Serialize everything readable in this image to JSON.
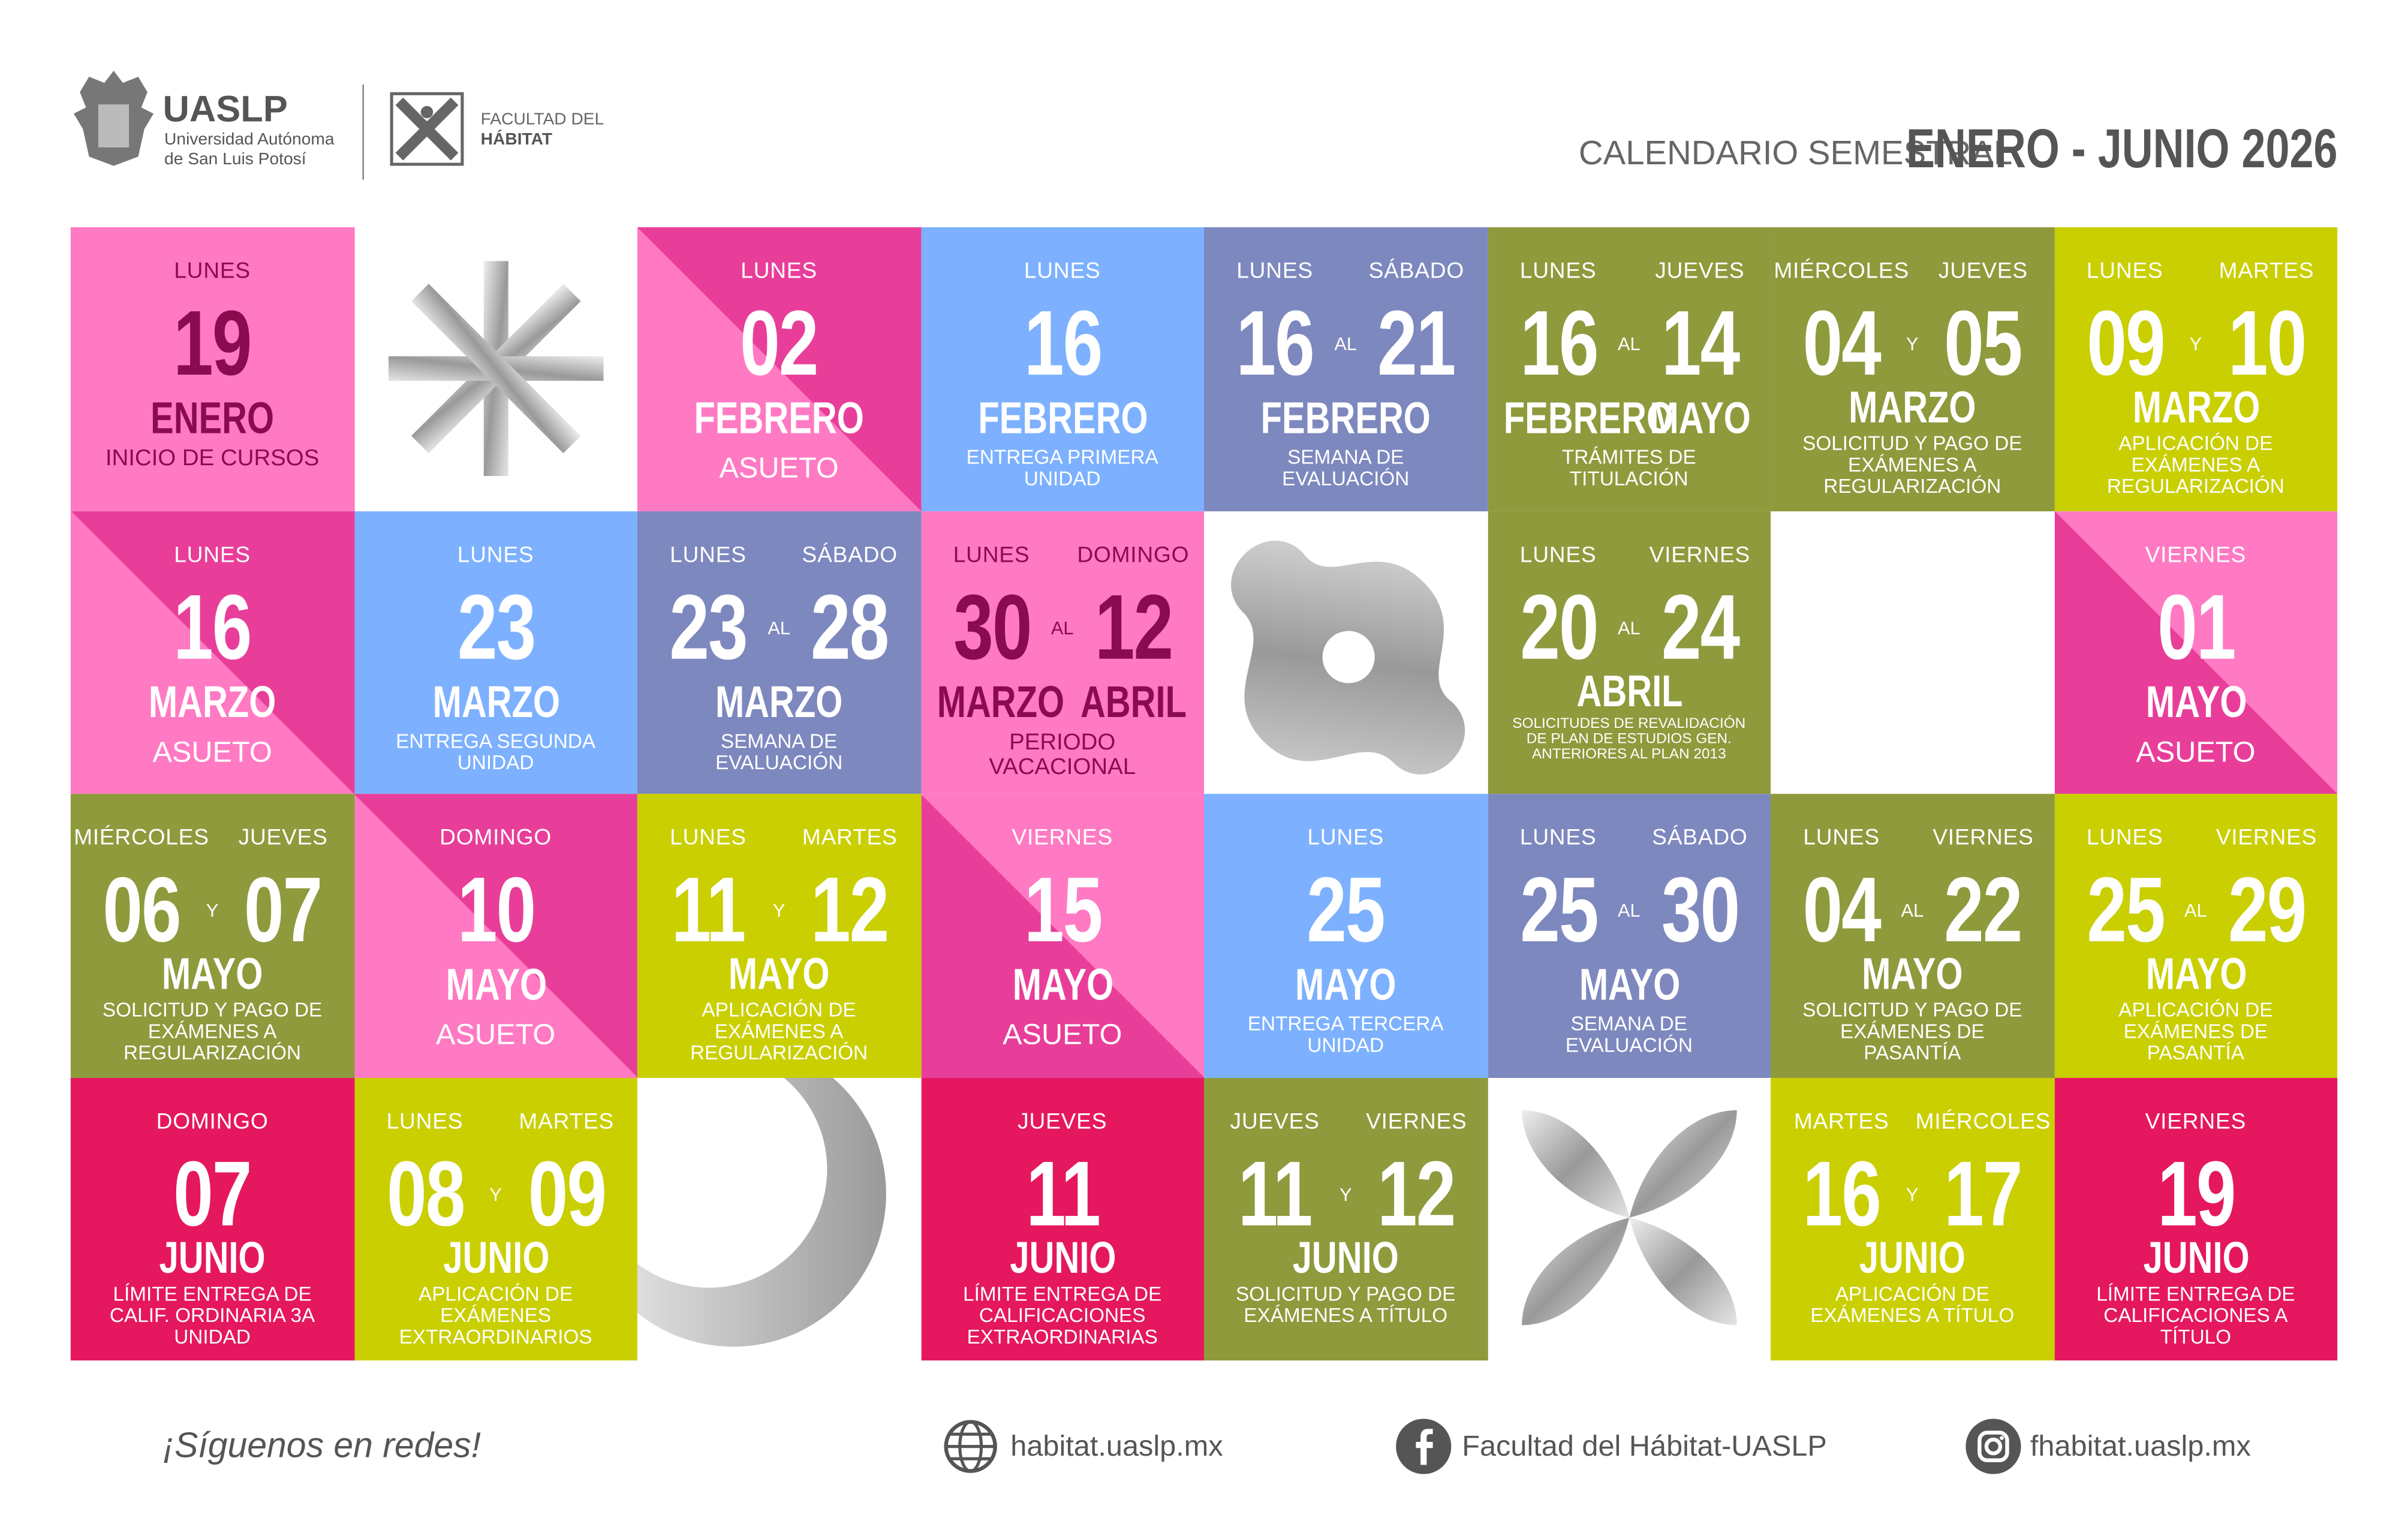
{
  "header": {
    "brand": "UASLP",
    "university": [
      "Universidad Autónoma",
      "de San Luis Potosí"
    ],
    "faculty": [
      "FACULTAD DEL",
      "HÁBITAT"
    ],
    "calendar_label": "CALENDARIO SEMESTRAL",
    "period": "ENERO - JUNIO 2026"
  },
  "cells": [
    {
      "weekdays": [
        "LUNES"
      ],
      "days": [
        "19"
      ],
      "months": [
        "ENERO"
      ],
      "description": "INICIO DE CURSOS",
      "colors": [
        "#ff7ac3",
        "#ff7ac3"
      ],
      "text_color": "#8a0b4f"
    },
    {
      "weekdays": [
        "LUNES"
      ],
      "days": [
        "02"
      ],
      "months": [
        "FEBRERO"
      ],
      "description": "ASUETO",
      "colors": [
        "#e83e9a",
        "#ff7ac3"
      ],
      "text_color": "#ffffff"
    },
    {
      "weekdays": [
        "LUNES"
      ],
      "days": [
        "16"
      ],
      "months": [
        "FEBRERO"
      ],
      "description": "ENTREGA PRIMERA UNIDAD",
      "colors": [
        "#7db1ff",
        "#7db1ff"
      ],
      "text_color": "#ffffff"
    },
    {
      "weekdays": [
        "LUNES",
        "SÁBADO"
      ],
      "days": [
        "16",
        "21"
      ],
      "connector": "AL",
      "months": [
        "FEBRERO"
      ],
      "description": "SEMANA DE EVALUACIÓN",
      "colors": [
        "#7d88be",
        "#7d88be"
      ],
      "text_color": "#ffffff"
    },
    {
      "weekdays": [
        "LUNES",
        "JUEVES"
      ],
      "days": [
        "16",
        "14"
      ],
      "connector": "AL",
      "months": [
        "FEBRERO",
        "MAYO"
      ],
      "description": "TRÁMITES DE TITULACIÓN",
      "colors": [
        "#8e9a3c",
        "#8e9a3c"
      ],
      "text_color": "#ffffff"
    },
    {
      "weekdays": [
        "MIÉRCOLES",
        "JUEVES"
      ],
      "days": [
        "04",
        "05"
      ],
      "connector": "Y",
      "months": [
        "MARZO"
      ],
      "description": "SOLICITUD Y PAGO DE EXÁMENES A REGULARIZACIÓN",
      "colors": [
        "#8e9a3c",
        "#8e9a3c"
      ],
      "text_color": "#ffffff"
    },
    {
      "weekdays": [
        "LUNES",
        "MARTES"
      ],
      "days": [
        "09",
        "10"
      ],
      "connector": "Y",
      "months": [
        "MARZO"
      ],
      "description": "APLICACIÓN DE EXÁMENES A REGULARIZACIÓN",
      "colors": [
        "#c9cf00",
        "#c9cf00"
      ],
      "text_color": "#ffffff"
    },
    {
      "weekdays": [
        "LUNES"
      ],
      "days": [
        "16"
      ],
      "months": [
        "MARZO"
      ],
      "description": "ASUETO",
      "colors": [
        "#e83e9a",
        "#ff7ac3"
      ],
      "text_color": "#ffffff"
    },
    {
      "weekdays": [
        "LUNES"
      ],
      "days": [
        "23"
      ],
      "months": [
        "MARZO"
      ],
      "description": "ENTREGA SEGUNDA UNIDAD",
      "colors": [
        "#7db1ff",
        "#7db1ff"
      ],
      "text_color": "#ffffff"
    },
    {
      "weekdays": [
        "LUNES",
        "SÁBADO"
      ],
      "days": [
        "23",
        "28"
      ],
      "connector": "AL",
      "months": [
        "MARZO"
      ],
      "description": "SEMANA DE EVALUACIÓN",
      "colors": [
        "#7d88be",
        "#7d88be"
      ],
      "text_color": "#ffffff"
    },
    {
      "weekdays": [
        "LUNES",
        "DOMINGO"
      ],
      "days": [
        "30",
        "12"
      ],
      "connector": "AL",
      "months": [
        "MARZO",
        "ABRIL"
      ],
      "description": "PERIODO VACACIONAL",
      "colors": [
        "#ff7ac3",
        "#ff7ac3"
      ],
      "text_color": "#8a0b4f"
    },
    {
      "weekdays": [
        "LUNES",
        "VIERNES"
      ],
      "days": [
        "20",
        "24"
      ],
      "connector": "AL",
      "months": [
        "ABRIL"
      ],
      "description": "SOLICITUDES DE REVALIDACIÓN DE PLAN DE ESTUDIOS GEN. ANTERIORES AL PLAN 2013",
      "colors": [
        "#8e9a3c",
        "#8e9a3c"
      ],
      "text_color": "#ffffff"
    },
    {
      "weekdays": [
        "VIERNES"
      ],
      "days": [
        "01"
      ],
      "months": [
        "MAYO"
      ],
      "description": "ASUETO",
      "colors": [
        "#ff7ac3",
        "#e83e9a"
      ],
      "text_color": "#ffffff"
    },
    {
      "weekdays": [
        "MIÉRCOLES",
        "JUEVES"
      ],
      "days": [
        "06",
        "07"
      ],
      "connector": "Y",
      "months": [
        "MAYO"
      ],
      "description": "SOLICITUD Y PAGO DE EXÁMENES A REGULARIZACIÓN",
      "colors": [
        "#8e9a3c",
        "#8e9a3c"
      ],
      "text_color": "#ffffff"
    },
    {
      "weekdays": [
        "DOMINGO"
      ],
      "days": [
        "10"
      ],
      "months": [
        "MAYO"
      ],
      "description": "ASUETO",
      "colors": [
        "#e83e9a",
        "#ff7ac3"
      ],
      "text_color": "#ffffff"
    },
    {
      "weekdays": [
        "LUNES",
        "MARTES"
      ],
      "days": [
        "11",
        "12"
      ],
      "connector": "Y",
      "months": [
        "MAYO"
      ],
      "description": "APLICACIÓN DE EXÁMENES A REGULARIZACIÓN",
      "colors": [
        "#c9cf00",
        "#c9cf00"
      ],
      "text_color": "#ffffff"
    },
    {
      "weekdays": [
        "VIERNES"
      ],
      "days": [
        "15"
      ],
      "months": [
        "MAYO"
      ],
      "description": "ASUETO",
      "colors": [
        "#ff7ac3",
        "#e83e9a"
      ],
      "text_color": "#ffffff"
    },
    {
      "weekdays": [
        "LUNES"
      ],
      "days": [
        "25"
      ],
      "months": [
        "MAYO"
      ],
      "description": "ENTREGA TERCERA UNIDAD",
      "colors": [
        "#7db1ff",
        "#7db1ff"
      ],
      "text_color": "#ffffff"
    },
    {
      "weekdays": [
        "LUNES",
        "SÁBADO"
      ],
      "days": [
        "25",
        "30"
      ],
      "connector": "AL",
      "months": [
        "MAYO"
      ],
      "description": "SEMANA DE EVALUACIÓN",
      "colors": [
        "#7d88be",
        "#7d88be"
      ],
      "text_color": "#ffffff"
    },
    {
      "weekdays": [
        "LUNES",
        "VIERNES"
      ],
      "days": [
        "04",
        "22"
      ],
      "connector": "AL",
      "months": [
        "MAYO"
      ],
      "description": "SOLICITUD Y PAGO DE EXÁMENES DE PASANTÍA",
      "colors": [
        "#8e9a3c",
        "#8e9a3c"
      ],
      "text_color": "#ffffff"
    },
    {
      "weekdays": [
        "LUNES",
        "VIERNES"
      ],
      "days": [
        "25",
        "29"
      ],
      "connector": "AL",
      "months": [
        "MAYO"
      ],
      "description": "APLICACIÓN DE EXÁMENES DE PASANTÍA",
      "colors": [
        "#c9cf00",
        "#c9cf00"
      ],
      "text_color": "#ffffff"
    },
    {
      "weekdays": [
        "DOMINGO"
      ],
      "days": [
        "07"
      ],
      "months": [
        "JUNIO"
      ],
      "description": "LÍMITE ENTREGA DE CALIF. ORDINARIA 3A UNIDAD",
      "colors": [
        "#e5175f",
        "#e5175f"
      ],
      "text_color": "#ffffff"
    },
    {
      "weekdays": [
        "LUNES",
        "MARTES"
      ],
      "days": [
        "08",
        "09"
      ],
      "connector": "Y",
      "months": [
        "JUNIO"
      ],
      "description": "APLICACIÓN DE EXÁMENES EXTRAORDINARIOS",
      "colors": [
        "#c9cf00",
        "#c9cf00"
      ],
      "text_color": "#ffffff"
    },
    {
      "weekdays": [
        "JUEVES"
      ],
      "days": [
        "11"
      ],
      "months": [
        "JUNIO"
      ],
      "description": "LÍMITE ENTREGA DE CALIFICACIONES EXTRAORDINARIAS",
      "colors": [
        "#e5175f",
        "#e5175f"
      ],
      "text_color": "#ffffff"
    },
    {
      "weekdays": [
        "JUEVES",
        "VIERNES"
      ],
      "days": [
        "11",
        "12"
      ],
      "connector": "Y",
      "months": [
        "JUNIO"
      ],
      "description": "SOLICITUD Y PAGO DE EXÁMENES A TÍTULO",
      "colors": [
        "#8e9a3c",
        "#8e9a3c"
      ],
      "text_color": "#ffffff"
    },
    {
      "weekdays": [
        "MARTES",
        "MIÉRCOLES"
      ],
      "days": [
        "16",
        "17"
      ],
      "connector": "Y",
      "months": [
        "JUNIO"
      ],
      "description": "APLICACIÓN DE EXÁMENES A TÍTULO",
      "colors": [
        "#c9cf00",
        "#c9cf00"
      ],
      "text_color": "#ffffff"
    },
    {
      "weekdays": [
        "VIERNES"
      ],
      "days": [
        "19"
      ],
      "months": [
        "JUNIO"
      ],
      "description": "LÍMITE ENTREGA DE CALIFICACIONES A TÍTULO",
      "colors": [
        "#e5175f",
        "#e5175f"
      ],
      "text_color": "#ffffff"
    }
  ],
  "footer": {
    "tagline": "¡Síguenos en redes!",
    "website": "habitat.uaslp.mx",
    "facebook": "Facultad del Hábitat-UASLP",
    "instagram": "fhabitat.uaslp.mx"
  }
}
